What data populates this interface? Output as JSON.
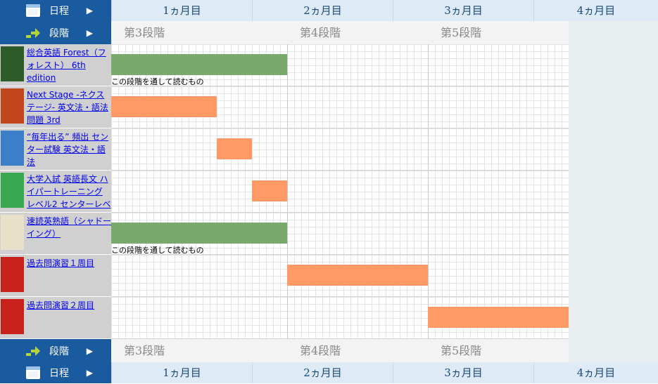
{
  "schedule_header": {
    "label": "日程",
    "months": [
      "1ヵ月目",
      "2ヵ月目",
      "3ヵ月目",
      "4ヵ月目"
    ]
  },
  "stage_header": {
    "label": "段階",
    "stages": [
      "第3段階",
      "第4段階",
      "第5段階"
    ]
  },
  "books": [
    {
      "title": "総合英語 Forest（フォレスト） 6th edition",
      "start_week": 0,
      "end_week": 5,
      "color": "#7aa96e",
      "note": "この段階を通して読むもの"
    },
    {
      "title": "Next Stage -ネクステージ- 英文法・語法問題 3rd",
      "start_week": 0,
      "end_week": 3,
      "color": "#ff9966"
    },
    {
      "title": "“毎年出る” 頻出 センター試験 英文法・語法",
      "start_week": 3,
      "end_week": 4,
      "color": "#ff9966"
    },
    {
      "title": "大学入試 英語長文 ハイパートレーニング レベル2 センターレベ",
      "start_week": 4,
      "end_week": 5,
      "color": "#ff9966"
    },
    {
      "title": "速読英熟語（シャドーイング）",
      "start_week": 0,
      "end_week": 5,
      "color": "#7aa96e",
      "note": "この段階を通して読むもの"
    },
    {
      "title": "過去問演習１周目",
      "start_week": 5,
      "end_week": 9,
      "color": "#ff9966"
    },
    {
      "title": "過去問演習２周目",
      "start_week": 9,
      "end_week": 13,
      "color": "#ff9966"
    }
  ]
}
